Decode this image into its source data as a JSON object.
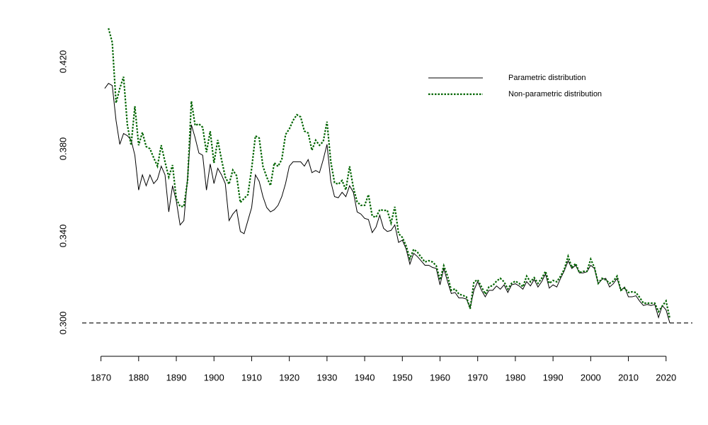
{
  "chart_data": {
    "type": "line",
    "x": [
      1871,
      1872,
      1873,
      1874,
      1875,
      1876,
      1877,
      1878,
      1879,
      1880,
      1881,
      1882,
      1883,
      1884,
      1885,
      1886,
      1887,
      1888,
      1889,
      1890,
      1891,
      1892,
      1893,
      1894,
      1895,
      1896,
      1897,
      1898,
      1899,
      1900,
      1901,
      1902,
      1903,
      1904,
      1905,
      1906,
      1907,
      1908,
      1909,
      1910,
      1911,
      1912,
      1913,
      1914,
      1915,
      1916,
      1917,
      1918,
      1919,
      1920,
      1921,
      1922,
      1923,
      1924,
      1925,
      1926,
      1927,
      1928,
      1929,
      1930,
      1931,
      1932,
      1933,
      1934,
      1935,
      1936,
      1937,
      1938,
      1939,
      1940,
      1941,
      1942,
      1943,
      1944,
      1945,
      1946,
      1947,
      1948,
      1949,
      1950,
      1951,
      1952,
      1953,
      1954,
      1955,
      1956,
      1957,
      1958,
      1959,
      1960,
      1961,
      1962,
      1963,
      1964,
      1965,
      1966,
      1967,
      1968,
      1969,
      1970,
      1971,
      1972,
      1973,
      1974,
      1975,
      1976,
      1977,
      1978,
      1979,
      1980,
      1981,
      1982,
      1983,
      1984,
      1985,
      1986,
      1987,
      1988,
      1989,
      1990,
      1991,
      1992,
      1993,
      1994,
      1995,
      1996,
      1997,
      1998,
      1999,
      2000,
      2001,
      2002,
      2003,
      2004,
      2005,
      2006,
      2007,
      2008,
      2009,
      2010,
      2011,
      2012,
      2013,
      2014,
      2015,
      2016,
      2017,
      2018,
      2019,
      2020,
      2021
    ],
    "series": [
      {
        "name": "Parametric distribution",
        "color": "#000000",
        "dash": "solid",
        "values": [
          0.4077,
          0.41,
          0.409,
          0.393,
          0.382,
          0.387,
          0.386,
          0.384,
          0.377,
          0.361,
          0.368,
          0.363,
          0.368,
          0.364,
          0.366,
          0.372,
          0.368,
          0.351,
          0.363,
          0.356,
          0.345,
          0.347,
          0.367,
          0.391,
          0.385,
          0.378,
          0.377,
          0.361,
          0.373,
          0.364,
          0.371,
          0.368,
          0.364,
          0.347,
          0.35,
          0.352,
          0.342,
          0.341,
          0.347,
          0.353,
          0.368,
          0.365,
          0.358,
          0.353,
          0.351,
          0.352,
          0.354,
          0.358,
          0.364,
          0.372,
          0.374,
          0.374,
          0.374,
          0.372,
          0.375,
          0.369,
          0.37,
          0.369,
          0.375,
          0.382,
          0.365,
          0.358,
          0.3575,
          0.36,
          0.358,
          0.363,
          0.36,
          0.351,
          0.35,
          0.348,
          0.3475,
          0.3415,
          0.344,
          0.3495,
          0.3435,
          0.342,
          0.3425,
          0.345,
          0.337,
          0.338,
          0.334,
          0.327,
          0.332,
          0.3305,
          0.3285,
          0.3265,
          0.3265,
          0.3255,
          0.325,
          0.3175,
          0.325,
          0.319,
          0.3135,
          0.314,
          0.3115,
          0.3115,
          0.311,
          0.307,
          0.315,
          0.319,
          0.315,
          0.312,
          0.315,
          0.315,
          0.317,
          0.3155,
          0.3175,
          0.314,
          0.3175,
          0.318,
          0.317,
          0.3155,
          0.319,
          0.317,
          0.32,
          0.3165,
          0.319,
          0.3225,
          0.316,
          0.3175,
          0.3165,
          0.3205,
          0.324,
          0.3285,
          0.325,
          0.3265,
          0.323,
          0.323,
          0.3235,
          0.3265,
          0.325,
          0.318,
          0.32,
          0.3205,
          0.3165,
          0.318,
          0.3205,
          0.315,
          0.3165,
          0.312,
          0.312,
          0.3125,
          0.31,
          0.308,
          0.3085,
          0.308,
          0.3085,
          0.3025,
          0.308,
          0.306,
          0.3
        ]
      },
      {
        "name": "Non-parametric distribution",
        "color": "#006400",
        "dash": "dotted",
        "values": [
          null,
          0.4353,
          0.4288,
          0.401,
          0.4077,
          0.413,
          0.391,
          0.3816,
          0.3995,
          0.3816,
          0.3875,
          0.381,
          0.38,
          0.3758,
          0.372,
          0.3816,
          0.374,
          0.367,
          0.3725,
          0.357,
          0.3535,
          0.3535,
          0.3655,
          0.4018,
          0.3907,
          0.3914,
          0.3898,
          0.3784,
          0.388,
          0.3735,
          0.384,
          0.375,
          0.367,
          0.3637,
          0.3702,
          0.3676,
          0.3553,
          0.3572,
          0.3589,
          0.3709,
          0.3859,
          0.3849,
          0.3719,
          0.367,
          0.3631,
          0.3735,
          0.3719,
          0.3751,
          0.3865,
          0.3891,
          0.393,
          0.3956,
          0.3946,
          0.3881,
          0.3872,
          0.3793,
          0.3839,
          0.3816,
          0.3833,
          0.3924,
          0.3741,
          0.3644,
          0.3637,
          0.3654,
          0.3611,
          0.3719,
          0.3621,
          0.3556,
          0.354,
          0.354,
          0.3589,
          0.3491,
          0.3485,
          0.352,
          0.3517,
          0.3517,
          0.3459,
          0.3533,
          0.341,
          0.3393,
          0.3354,
          0.3296,
          0.3338,
          0.3325,
          0.3302,
          0.328,
          0.3286,
          0.328,
          0.3263,
          0.3198,
          0.3263,
          0.3215,
          0.315,
          0.3156,
          0.3133,
          0.3127,
          0.312,
          0.3065,
          0.3189,
          0.3198,
          0.3166,
          0.3133,
          0.3166,
          0.3172,
          0.3192,
          0.3205,
          0.3189,
          0.3156,
          0.3182,
          0.3192,
          0.3182,
          0.3166,
          0.3215,
          0.3189,
          0.3208,
          0.3182,
          0.3205,
          0.3237,
          0.3182,
          0.3195,
          0.3189,
          0.3215,
          0.3247,
          0.3306,
          0.3254,
          0.3273,
          0.3231,
          0.3237,
          0.3237,
          0.3293,
          0.3254,
          0.3182,
          0.3205,
          0.3198,
          0.3182,
          0.3192,
          0.3215,
          0.315,
          0.316,
          0.314,
          0.3143,
          0.314,
          0.3117,
          0.3091,
          0.3091,
          0.3091,
          0.3091,
          0.3052,
          0.3078,
          0.3101,
          0.302
        ]
      }
    ],
    "xlim": [
      1865,
      2027
    ],
    "xticks": [
      1870,
      1880,
      1890,
      1900,
      1910,
      1920,
      1930,
      1940,
      1950,
      1960,
      1970,
      1980,
      1990,
      2000,
      2010,
      2020
    ],
    "ylim": [
      0.2847,
      0.4395
    ],
    "yticks": [
      {
        "value": 0.3,
        "label": "0.300"
      },
      {
        "value": 0.34,
        "label": "0.340"
      },
      {
        "value": 0.38,
        "label": "0.380"
      },
      {
        "value": 0.42,
        "label": "0.420"
      }
    ],
    "hline": 0.3,
    "legend": "topright",
    "grid": false
  }
}
